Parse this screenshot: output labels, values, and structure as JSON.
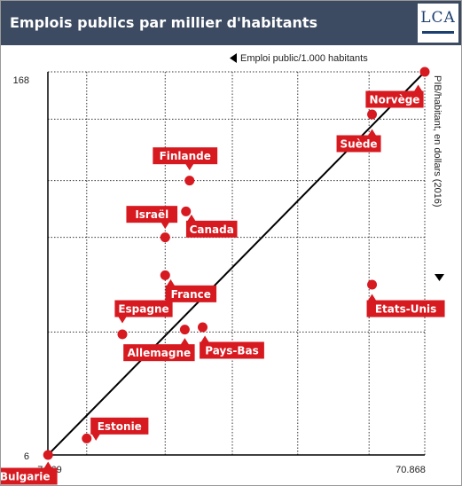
{
  "header": {
    "title": "Emplois publics par millier d'habitants",
    "logo": "LCA"
  },
  "colors": {
    "header_bg": "#3c4b62",
    "accent_red": "#d71920",
    "logo_blue": "#1c3f72"
  },
  "chart_data": {
    "type": "scatter",
    "title": "",
    "xlabel": "Emploi public/1.000 habitants",
    "ylabel": "PIB/habitant, en dollars (2016)",
    "x_tick_labels": [
      "7.469",
      "70.868"
    ],
    "y_tick_labels": [
      "6",
      "168"
    ],
    "xlim": [
      7.469,
      70.868
    ],
    "ylim": [
      6,
      168
    ],
    "grid": true,
    "trend_line": true,
    "points": [
      {
        "name": "Bulgarie",
        "x": 7.5,
        "y": 6
      },
      {
        "name": "Estonie",
        "x": 14.0,
        "y": 13
      },
      {
        "name": "Espagne",
        "x": 20.0,
        "y": 57
      },
      {
        "name": "France",
        "x": 27.2,
        "y": 82
      },
      {
        "name": "Israël",
        "x": 27.2,
        "y": 98
      },
      {
        "name": "Canada",
        "x": 30.7,
        "y": 109
      },
      {
        "name": "Finlande",
        "x": 31.3,
        "y": 122
      },
      {
        "name": "Allemagne",
        "x": 30.5,
        "y": 59
      },
      {
        "name": "Pays-Bas",
        "x": 33.5,
        "y": 60
      },
      {
        "name": "Suède",
        "x": 62.0,
        "y": 150
      },
      {
        "name": "Etats-Unis",
        "x": 62.0,
        "y": 78
      },
      {
        "name": "Norvège",
        "x": 70.868,
        "y": 168
      }
    ]
  }
}
